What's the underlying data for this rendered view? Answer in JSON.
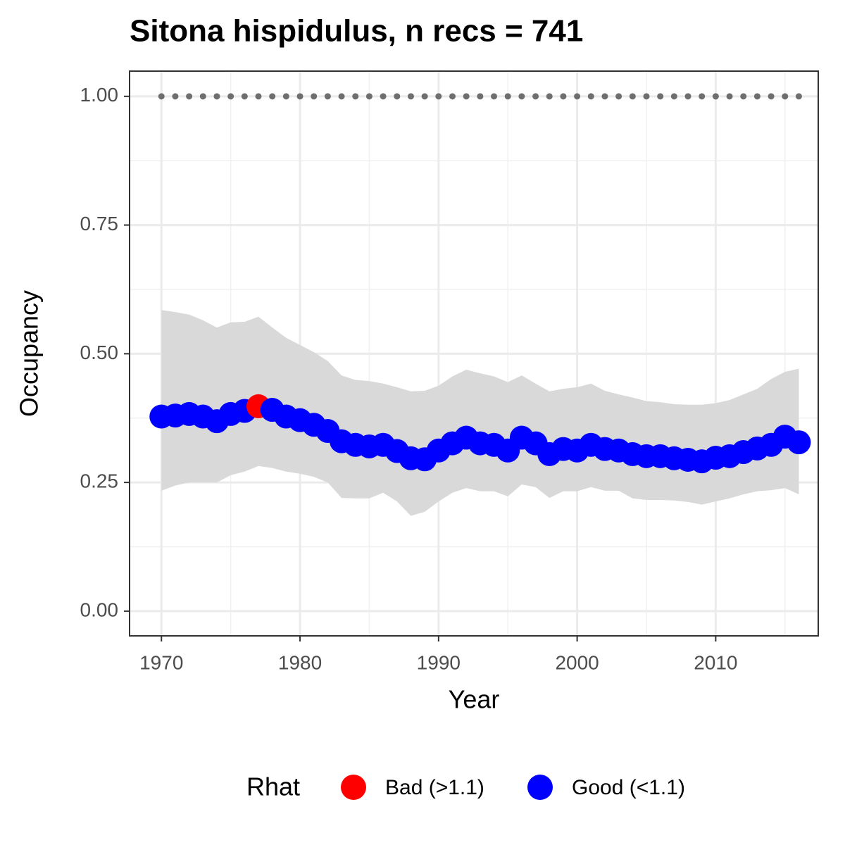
{
  "chart_data": {
    "type": "occupancy",
    "title": "Sitona hispidulus, n recs = 741",
    "x_label": "Year",
    "y_label": "Occupancy",
    "xlim": [
      1967.7,
      2017.4
    ],
    "ylim": [
      -0.048,
      1.049
    ],
    "xticks": [
      1970,
      1980,
      1990,
      2000,
      2010
    ],
    "yticks": [
      {
        "value": 0,
        "label": "0.00"
      },
      {
        "value": 0.25,
        "label": "0.25"
      },
      {
        "value": 0.5,
        "label": "0.50"
      },
      {
        "value": 0.75,
        "label": "0.75"
      },
      {
        "value": 1,
        "label": "1.00"
      }
    ],
    "minor_xticks": [
      1975,
      1985,
      1995,
      2005,
      2015
    ],
    "minor_yticks": [
      0.125,
      0.375,
      0.625,
      0.875
    ],
    "grid": true,
    "x": [
      1970,
      1971,
      1972,
      1973,
      1974,
      1975,
      1976,
      1977,
      1978,
      1979,
      1980,
      1981,
      1982,
      1983,
      1984,
      1985,
      1986,
      1987,
      1988,
      1989,
      1990,
      1991,
      1992,
      1993,
      1994,
      1995,
      1996,
      1997,
      1998,
      1999,
      2000,
      2001,
      2002,
      2003,
      2004,
      2005,
      2006,
      2007,
      2008,
      2009,
      2010,
      2011,
      2012,
      2013,
      2014,
      2015,
      2016
    ],
    "values": [
      0.378,
      0.38,
      0.383,
      0.378,
      0.369,
      0.383,
      0.389,
      0.398,
      0.391,
      0.378,
      0.371,
      0.362,
      0.35,
      0.33,
      0.323,
      0.32,
      0.323,
      0.311,
      0.297,
      0.295,
      0.312,
      0.326,
      0.337,
      0.326,
      0.323,
      0.312,
      0.337,
      0.326,
      0.305,
      0.315,
      0.312,
      0.323,
      0.315,
      0.312,
      0.305,
      0.301,
      0.301,
      0.297,
      0.294,
      0.291,
      0.298,
      0.301,
      0.309,
      0.316,
      0.323,
      0.339,
      0.328
    ],
    "upper": [
      0.585,
      0.581,
      0.576,
      0.565,
      0.551,
      0.561,
      0.562,
      0.572,
      0.551,
      0.531,
      0.517,
      0.503,
      0.486,
      0.458,
      0.449,
      0.447,
      0.442,
      0.435,
      0.427,
      0.428,
      0.438,
      0.456,
      0.469,
      0.462,
      0.456,
      0.445,
      0.458,
      0.442,
      0.427,
      0.432,
      0.435,
      0.442,
      0.428,
      0.421,
      0.415,
      0.408,
      0.406,
      0.402,
      0.401,
      0.401,
      0.404,
      0.41,
      0.421,
      0.432,
      0.451,
      0.465,
      0.471
    ],
    "lower": [
      0.234,
      0.244,
      0.25,
      0.25,
      0.25,
      0.264,
      0.271,
      0.282,
      0.278,
      0.271,
      0.267,
      0.261,
      0.25,
      0.22,
      0.219,
      0.219,
      0.23,
      0.213,
      0.185,
      0.193,
      0.213,
      0.23,
      0.239,
      0.233,
      0.233,
      0.223,
      0.246,
      0.241,
      0.22,
      0.233,
      0.233,
      0.241,
      0.234,
      0.234,
      0.219,
      0.216,
      0.216,
      0.215,
      0.212,
      0.207,
      0.213,
      0.219,
      0.227,
      0.233,
      0.235,
      0.239,
      0.227
    ],
    "band_color": "#d9d9d9",
    "rhat": [
      1,
      1,
      1,
      1,
      1,
      1,
      1,
      0,
      1,
      1,
      1,
      1,
      1,
      1,
      1,
      1,
      1,
      1,
      1,
      1,
      1,
      1,
      1,
      1,
      1,
      1,
      1,
      1,
      1,
      1,
      1,
      1,
      1,
      1,
      1,
      1,
      1,
      1,
      1,
      1,
      1,
      1,
      1,
      1,
      1,
      1,
      1
    ],
    "reference": {
      "color": "#6e6e6e",
      "values": [
        1,
        1,
        1,
        1,
        1,
        1,
        1,
        1,
        1,
        1,
        1,
        1,
        1,
        1,
        1,
        1,
        1,
        1,
        1,
        1,
        1,
        1,
        1,
        1,
        1,
        1,
        1,
        1,
        1,
        1,
        1,
        1,
        1,
        1,
        1,
        1,
        1,
        1,
        1,
        1,
        1,
        1,
        1,
        1,
        1,
        1,
        1
      ]
    },
    "legend": {
      "title": "Rhat",
      "position": "bottom",
      "entries": [
        {
          "name": "Bad (>1.1)",
          "color": "#ff0000"
        },
        {
          "name": "Good (<1.1)",
          "color": "#0000ff"
        }
      ]
    }
  }
}
